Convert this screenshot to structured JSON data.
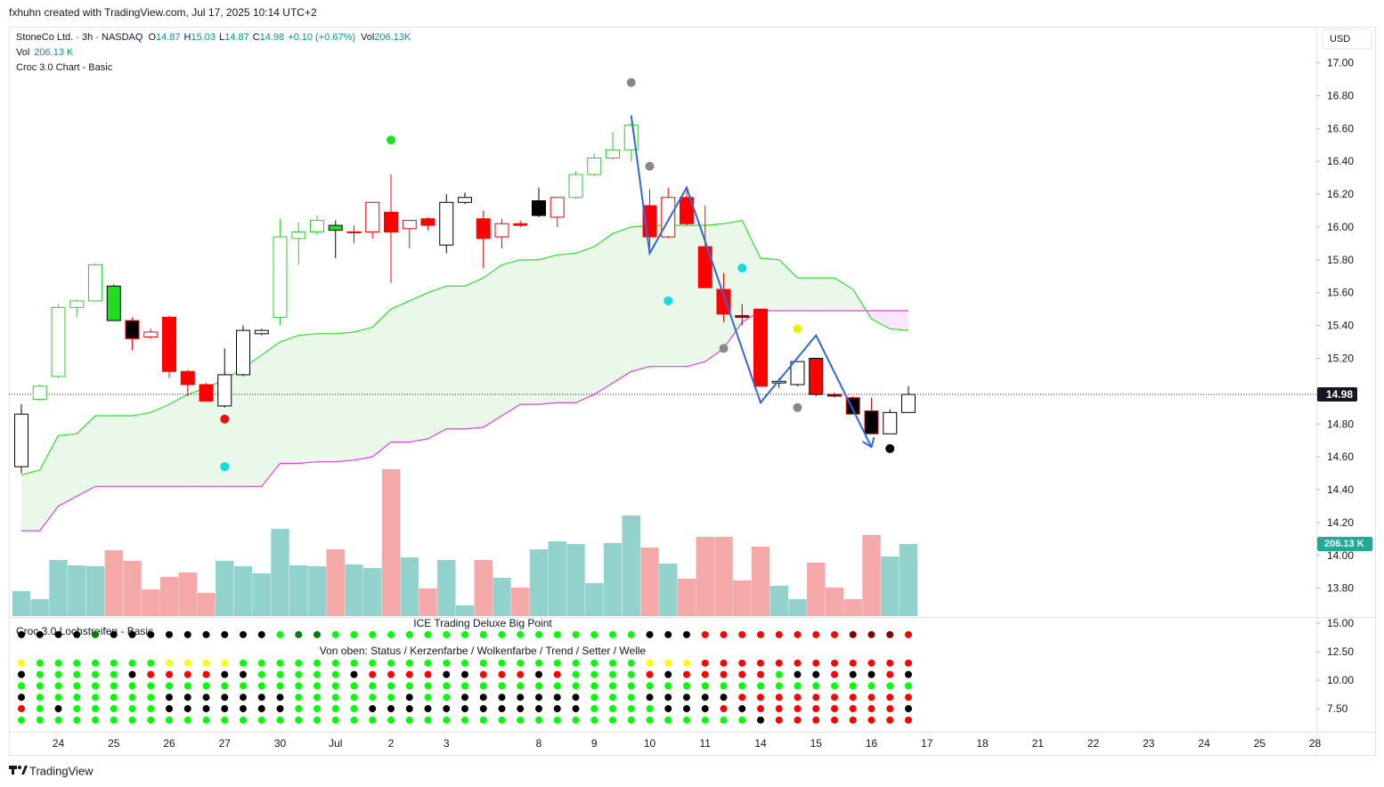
{
  "header": {
    "credit": "fxhuhn created with TradingView.com, Jul 17, 2025 10:14 UTC+2"
  },
  "legend": {
    "symbol": "StoneCo Ltd. · 3h · NASDAQ",
    "fields": [
      {
        "key": "O",
        "value": 14.87
      },
      {
        "key": "H",
        "value": 15.03
      },
      {
        "key": "L",
        "value": 14.87
      },
      {
        "key": "C",
        "value": 14.98
      }
    ],
    "change": "+0.10 (+0.67%)",
    "vol_key": "Vol",
    "vol_value": "206.13K",
    "volume_line": {
      "key": "Vol",
      "value": "206.13 K"
    },
    "indicator": "Croc 3.0 Chart - Basic"
  },
  "currency": "USD",
  "footer": {
    "brand": "TradingView"
  },
  "chart_data": {
    "type": "candlestick",
    "categories": [
      null,
      null,
      "24",
      null,
      null,
      "25",
      null,
      null,
      "26",
      null,
      null,
      "27",
      null,
      null,
      "30",
      null,
      null,
      "Jul",
      null,
      null,
      "2",
      null,
      null,
      "3",
      null,
      null,
      null,
      null,
      "8",
      null,
      null,
      "9",
      null,
      null,
      "10",
      null,
      null,
      "11",
      null,
      null,
      "14",
      null,
      null,
      "15",
      null,
      null,
      "16",
      null,
      null
    ],
    "future_categories": [
      "17",
      null,
      null,
      "18",
      null,
      null,
      "21",
      null,
      null,
      "22",
      null,
      null,
      "23",
      null,
      null,
      "24",
      null,
      null,
      "25",
      null,
      null,
      "28"
    ],
    "open": [
      14.54,
      14.95,
      15.09,
      15.51,
      15.55,
      15.64,
      15.43,
      15.36,
      15.45,
      15.12,
      15.04,
      14.91,
      15.1,
      15.35,
      15.45,
      15.93,
      15.97,
      16.01,
      15.97,
      15.97,
      16.09,
      15.99,
      16.05,
      15.89,
      16.15,
      16.05,
      15.94,
      16.02,
      16.07,
      16.06,
      16.18,
      16.32,
      16.42,
      16.47,
      16.13,
      15.94,
      16.18,
      15.88,
      15.62,
      15.46,
      15.5,
      15.05,
      15.04,
      15.2,
      14.98,
      14.96,
      14.88,
      14.74,
      14.87
    ],
    "high": [
      14.92,
      15.04,
      15.53,
      15.56,
      15.78,
      15.65,
      15.45,
      15.38,
      15.46,
      15.13,
      15.05,
      15.26,
      15.4,
      15.38,
      16.05,
      16.03,
      16.07,
      16.04,
      16.01,
      16.15,
      16.32,
      16.04,
      16.06,
      16.2,
      16.21,
      16.1,
      16.05,
      16.04,
      16.24,
      16.18,
      16.34,
      16.45,
      16.58,
      16.63,
      16.23,
      16.24,
      16.22,
      16.13,
      15.72,
      15.53,
      15.5,
      15.08,
      15.18,
      15.2,
      14.99,
      14.97,
      14.96,
      14.89,
      15.03
    ],
    "low": [
      14.5,
      14.94,
      15.08,
      15.45,
      15.55,
      15.43,
      15.25,
      15.32,
      15.08,
      14.97,
      14.94,
      14.9,
      15.09,
      15.34,
      15.4,
      15.77,
      15.95,
      15.81,
      15.9,
      15.93,
      15.66,
      15.87,
      15.98,
      15.84,
      16.14,
      15.75,
      15.87,
      16.0,
      16.06,
      16.0,
      16.17,
      16.31,
      16.41,
      16.4,
      15.84,
      15.93,
      16.01,
      15.63,
      15.42,
      15.4,
      15.03,
      15.02,
      15.03,
      14.97,
      14.96,
      14.86,
      14.74,
      14.74,
      14.87
    ],
    "close": [
      14.86,
      15.03,
      15.51,
      15.55,
      15.77,
      15.43,
      15.32,
      15.33,
      15.12,
      15.04,
      14.94,
      15.1,
      15.37,
      15.37,
      15.94,
      15.97,
      16.04,
      15.98,
      15.97,
      16.15,
      15.97,
      16.04,
      16.01,
      16.15,
      16.18,
      15.93,
      16.02,
      16.01,
      16.16,
      16.18,
      16.32,
      16.42,
      16.47,
      16.62,
      15.94,
      16.18,
      16.02,
      15.63,
      15.47,
      15.45,
      15.03,
      15.06,
      15.18,
      14.98,
      14.97,
      14.86,
      14.74,
      14.87,
      14.98
    ],
    "candle_fills": [
      "#ffffff",
      "#ffffff",
      "#ffffff",
      "#ffffff",
      "#ffffff",
      "#22dd22",
      "#000000",
      "#ffffff",
      "#ff0000",
      "#ff0000",
      "#ff0000",
      "#ffffff",
      "#ffffff",
      "#ffffff",
      "#ffffff",
      "#ffffff",
      "#ffffff",
      "#22dd22",
      "#ffffff",
      "#ffffff",
      "#ff0000",
      "#ffffff",
      "#ff0000",
      "#ffffff",
      "#ffffff",
      "#ff0000",
      "#ffffff",
      "#ff0000",
      "#000000",
      "#ffffff",
      "#ffffff",
      "#ffffff",
      "#ffffff",
      "#ffffff",
      "#ff0000",
      "#ffffff",
      "#ff0000",
      "#ff0000",
      "#ff0000",
      "#800000",
      "#ff0000",
      "#ffffff",
      "#ffffff",
      "#ff0000",
      "#800000",
      "#000000",
      "#000000",
      "#ffffff",
      "#ffffff"
    ],
    "candle_edges": [
      "#000000",
      "#33cc33",
      "#33cc33",
      "#33cc33",
      "#33cc33",
      "#000000",
      "#ff0000",
      "#ff0000",
      "#ff0000",
      "#ff0000",
      "#ff0000",
      "#000000",
      "#000000",
      "#000000",
      "#33cc33",
      "#33cc33",
      "#33cc33",
      "#000000",
      "#ff0000",
      "#ff0000",
      "#ff0000",
      "#ff0000",
      "#ff0000",
      "#000000",
      "#000000",
      "#ff0000",
      "#ff0000",
      "#ff0000",
      "#000000",
      "#ff0000",
      "#33cc33",
      "#33cc33",
      "#33cc33",
      "#33cc33",
      "#ff0000",
      "#ff0000",
      "#ff0000",
      "#ff0000",
      "#ff0000",
      "#800000",
      "#ff0000",
      "#000000",
      "#000000",
      "#000000",
      "#800000",
      "#ff0000",
      "#ff0000",
      "#000000",
      "#000000"
    ],
    "volume": [
      71.3,
      48.4,
      160.3,
      145.1,
      142.5,
      188.3,
      157.8,
      76.4,
      112.0,
      124.7,
      66.2,
      157.8,
      142.5,
      122.2,
      249.4,
      145.1,
      142.5,
      190.9,
      147.6,
      137.4,
      419.9,
      168.0,
      78.9,
      160.3,
      30.5,
      160.3,
      109.4,
      81.4,
      190.9,
      213.8,
      206.1,
      94.2,
      208.7,
      287.6,
      196.0,
      150.2,
      106.9,
      226.5,
      226.5,
      101.8,
      198.5,
      86.5,
      48.4,
      152.7,
      81.4,
      48.4,
      231.6,
      170.5,
      206.13
    ],
    "volume_lim": [
      0,
      1685
    ],
    "volume_last_label": "206.13 K",
    "volume_up_color": "#92d2cc",
    "volume_down_color": "#f5a8a8",
    "cloud_upper": [
      14.49,
      14.52,
      14.73,
      14.74,
      14.85,
      14.85,
      14.85,
      14.87,
      14.92,
      14.98,
      15.02,
      15.07,
      15.14,
      15.22,
      15.3,
      15.34,
      15.35,
      15.35,
      15.36,
      15.39,
      15.5,
      15.55,
      15.6,
      15.64,
      15.64,
      15.69,
      15.77,
      15.8,
      15.8,
      15.83,
      15.84,
      15.88,
      15.96,
      16.0,
      16.01,
      16.01,
      16.01,
      16.01,
      16.02,
      16.04,
      15.81,
      15.8,
      15.69,
      15.69,
      15.69,
      15.62,
      15.44,
      15.38,
      15.37
    ],
    "cloud_lower": [
      14.15,
      14.15,
      14.3,
      14.36,
      14.42,
      14.42,
      14.42,
      14.42,
      14.42,
      14.42,
      14.42,
      14.42,
      14.42,
      14.42,
      14.56,
      14.56,
      14.57,
      14.57,
      14.58,
      14.6,
      14.69,
      14.69,
      14.71,
      14.77,
      14.77,
      14.78,
      14.85,
      14.92,
      14.92,
      14.93,
      14.93,
      14.98,
      15.05,
      15.12,
      15.15,
      15.15,
      15.15,
      15.18,
      15.26,
      15.42,
      15.49,
      15.49,
      15.49,
      15.49,
      15.49,
      15.49,
      15.49,
      15.49,
      15.49
    ],
    "cloud_upper_color": "#33dd33",
    "cloud_lower_color": "#e040e0",
    "cloud_fill": "#e9f8e9",
    "cloud_fill_inverse": "#fbe6fb",
    "zigzag": {
      "color": "#3366dd",
      "x": [
        33,
        34,
        36,
        40,
        43,
        46
      ],
      "values": [
        16.68,
        15.84,
        16.24,
        14.93,
        15.34,
        14.66
      ]
    },
    "markers": [
      {
        "x": 20,
        "value": 16.53,
        "color": "#22dd22"
      },
      {
        "x": 11,
        "value": 14.83,
        "color": "#ee1111"
      },
      {
        "x": 11,
        "value": 14.54,
        "color": "#11dddd"
      },
      {
        "x": 33,
        "value": 16.88,
        "color": "#888888"
      },
      {
        "x": 34,
        "value": 16.37,
        "color": "#888888"
      },
      {
        "x": 35,
        "value": 15.55,
        "color": "#11dddd"
      },
      {
        "x": 39,
        "value": 15.75,
        "color": "#11dddd"
      },
      {
        "x": 38,
        "value": 15.26,
        "color": "#888888"
      },
      {
        "x": 42,
        "value": 15.38,
        "color": "#eeee00"
      },
      {
        "x": 42,
        "value": 14.9,
        "color": "#888888"
      },
      {
        "x": 47,
        "value": 14.65,
        "color": "#000000"
      }
    ],
    "ylim": [
      13.63,
      17.22
    ],
    "yticks": [
      {
        "value": 17,
        "label": "17.00"
      },
      {
        "value": 16.8,
        "label": "16.80"
      },
      {
        "value": 16.6,
        "label": "16.60"
      },
      {
        "value": 16.4,
        "label": "16.40"
      },
      {
        "value": 16.2,
        "label": "16.20"
      },
      {
        "value": 16,
        "label": "16.00"
      },
      {
        "value": 15.8,
        "label": "15.80"
      },
      {
        "value": 15.6,
        "label": "15.60"
      },
      {
        "value": 15.4,
        "label": "15.40"
      },
      {
        "value": 15.2,
        "label": "15.20"
      },
      {
        "value": 15,
        "label": "15.00"
      },
      {
        "value": 14.8,
        "label": "14.80"
      },
      {
        "value": 14.6,
        "label": "14.60"
      },
      {
        "value": 14.4,
        "label": "14.40"
      },
      {
        "value": 14.2,
        "label": "14.20"
      },
      {
        "value": 14,
        "label": "14.00"
      },
      {
        "value": 13.8,
        "label": "13.80"
      }
    ],
    "grid": false,
    "lower_pane": {
      "title": "ICE Trading Deluxe Big Point",
      "indicator": "Croc 3.0 Lochstreifen - Basic",
      "caption": "Von oben: Status / Kerzenfarbe / Wolkenfarbe / Trend / Setter / Welle",
      "ylim": [
        5.47,
        15.55
      ],
      "yticks": [
        {
          "value": 15,
          "label": "15.00"
        },
        {
          "value": 12.5,
          "label": "12.50"
        },
        {
          "value": 10,
          "label": "10.00"
        },
        {
          "value": 7.5,
          "label": "7.50"
        }
      ],
      "dot_rows": [
        {
          "value": 14,
          "colors": [
            "black",
            "black",
            "black",
            "black",
            "green",
            "black",
            "black",
            "black",
            "black",
            "black",
            "black",
            "black",
            "black",
            "black",
            "lime",
            "green",
            "green",
            "lime",
            "lime",
            "lime",
            "lime",
            "lime",
            "lime",
            "lime",
            "lime",
            "lime",
            "lime",
            "lime",
            "lime",
            "lime",
            "lime",
            "lime",
            "lime",
            "lime",
            "black",
            "black",
            "black",
            "red",
            "red",
            "red",
            "red",
            "red",
            "red",
            "red",
            "red",
            "maroon",
            "maroon",
            "maroon",
            "red"
          ]
        },
        {
          "value": 11.5,
          "colors": [
            "yellow",
            "lime",
            "lime",
            "lime",
            "lime",
            "lime",
            "lime",
            "lime",
            "yellow",
            "yellow",
            "yellow",
            "yellow",
            "lime",
            "lime",
            "lime",
            "lime",
            "lime",
            "lime",
            "lime",
            "lime",
            "lime",
            "lime",
            "lime",
            "lime",
            "lime",
            "lime",
            "lime",
            "lime",
            "lime",
            "lime",
            "lime",
            "lime",
            "lime",
            "lime",
            "yellow",
            "yellow",
            "yellow",
            "red",
            "red",
            "red",
            "red",
            "red",
            "red",
            "red",
            "red",
            "red",
            "red",
            "red",
            "red"
          ]
        },
        {
          "value": 10.5,
          "colors": [
            "black",
            "lime",
            "lime",
            "lime",
            "lime",
            "lime",
            "black",
            "red",
            "red",
            "red",
            "red",
            "black",
            "black",
            "lime",
            "lime",
            "lime",
            "lime",
            "lime",
            "black",
            "red",
            "red",
            "red",
            "red",
            "black",
            "black",
            "red",
            "red",
            "red",
            "black",
            "red",
            "lime",
            "lime",
            "lime",
            "lime",
            "red",
            "black",
            "red",
            "red",
            "red",
            "red",
            "red",
            "lime",
            "black",
            "black",
            "red",
            "black",
            "black",
            "red",
            "black"
          ]
        },
        {
          "value": 9.5,
          "colors": [
            "lime",
            "lime",
            "lime",
            "lime",
            "lime",
            "lime",
            "lime",
            "lime",
            "lime",
            "lime",
            "lime",
            "lime",
            "lime",
            "lime",
            "lime",
            "lime",
            "lime",
            "lime",
            "lime",
            "lime",
            "lime",
            "lime",
            "lime",
            "lime",
            "lime",
            "lime",
            "lime",
            "lime",
            "lime",
            "lime",
            "lime",
            "lime",
            "lime",
            "lime",
            "lime",
            "lime",
            "lime",
            "lime",
            "lime",
            "lime",
            "lime",
            "lime",
            "lime",
            "lime",
            "lime",
            "lime",
            "lime",
            "lime",
            "lime"
          ]
        },
        {
          "value": 8.5,
          "colors": [
            "black",
            "lime",
            "lime",
            "lime",
            "lime",
            "lime",
            "lime",
            "lime",
            "black",
            "black",
            "black",
            "black",
            "black",
            "black",
            "black",
            "lime",
            "lime",
            "lime",
            "lime",
            "lime",
            "lime",
            "black",
            "lime",
            "lime",
            "black",
            "black",
            "black",
            "black",
            "black",
            "black",
            "black",
            "lime",
            "lime",
            "lime",
            "black",
            "black",
            "black",
            "black",
            "black",
            "red",
            "red",
            "red",
            "red",
            "red",
            "red",
            "red",
            "red",
            "red",
            "red"
          ]
        },
        {
          "value": 7.5,
          "colors": [
            "red",
            "lime",
            "black",
            "lime",
            "lime",
            "lime",
            "lime",
            "lime",
            "black",
            "black",
            "black",
            "black",
            "black",
            "black",
            "black",
            "lime",
            "lime",
            "lime",
            "lime",
            "black",
            "black",
            "black",
            "black",
            "black",
            "black",
            "black",
            "black",
            "black",
            "black",
            "black",
            "black",
            "lime",
            "lime",
            "lime",
            "lime",
            "black",
            "black",
            "black",
            "red",
            "black",
            "red",
            "red",
            "red",
            "red",
            "red",
            "red",
            "red",
            "red",
            "black"
          ]
        },
        {
          "value": 6.5,
          "colors": [
            "lime",
            "lime",
            "lime",
            "lime",
            "lime",
            "lime",
            "lime",
            "lime",
            "lime",
            "lime",
            "lime",
            "lime",
            "lime",
            "lime",
            "lime",
            "lime",
            "lime",
            "lime",
            "lime",
            "lime",
            "lime",
            "lime",
            "lime",
            "lime",
            "lime",
            "lime",
            "lime",
            "lime",
            "lime",
            "lime",
            "lime",
            "lime",
            "lime",
            "lime",
            "lime",
            "lime",
            "lime",
            "lime",
            "lime",
            "lime",
            "black",
            "red",
            "red",
            "red",
            "red",
            "red",
            "red",
            "red",
            "red"
          ]
        }
      ]
    }
  }
}
